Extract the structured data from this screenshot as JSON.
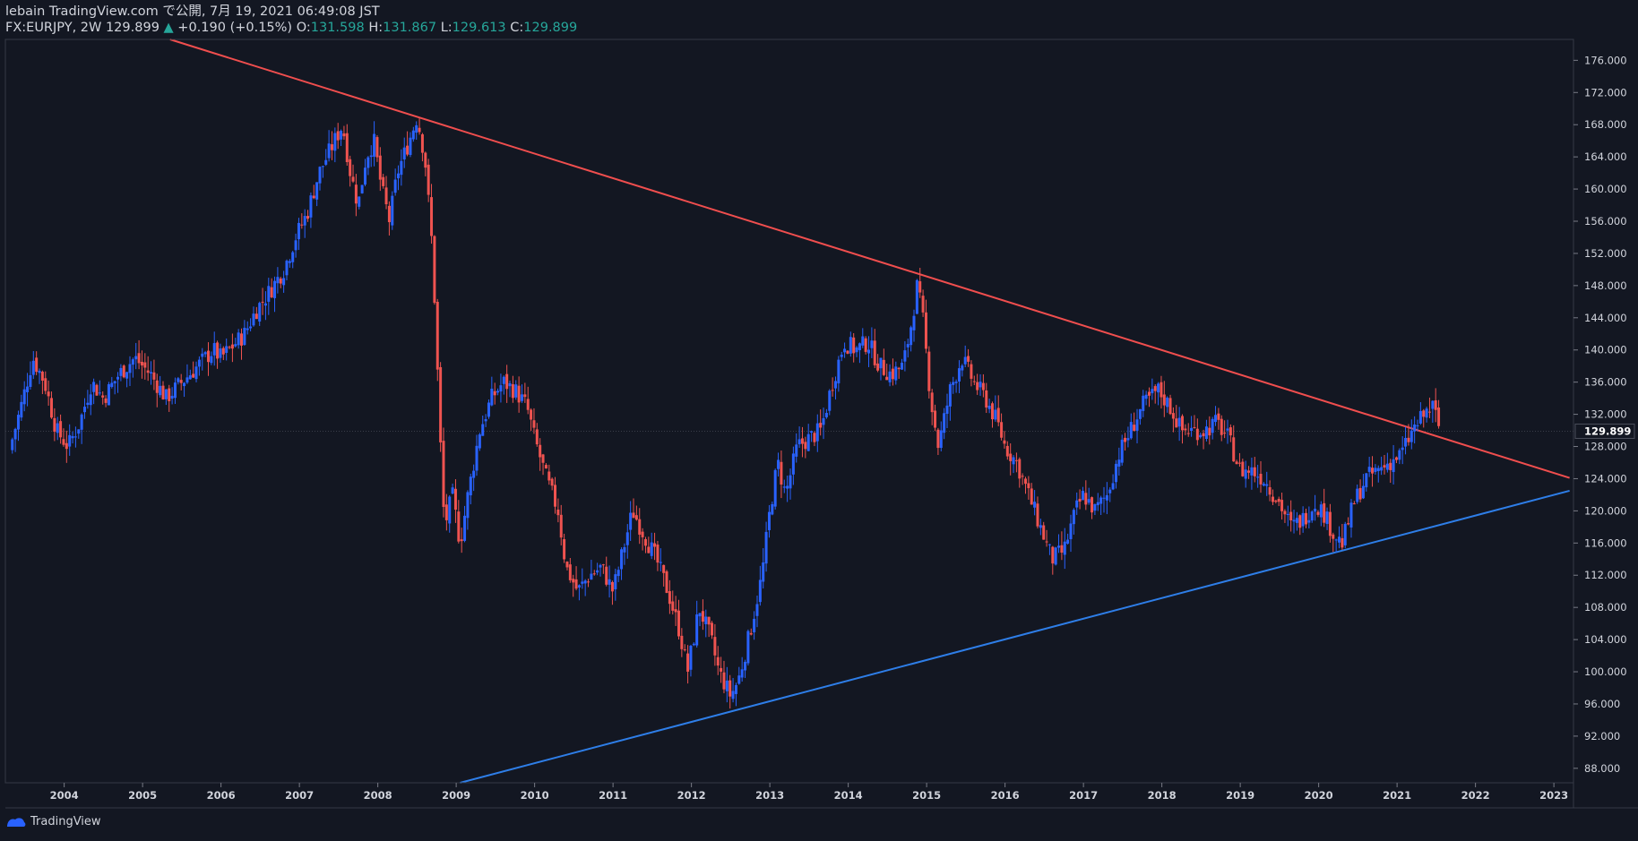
{
  "header": {
    "published_line": "lebain TradingView.com で公開, 7月 19, 2021 06:49:08 JST",
    "symbol_interval_close": "FX:EURJPY, 2W 129.899",
    "change_arrow": "▲",
    "change": "+0.190 (+0.15%)",
    "open_label": "O:",
    "open": "131.598",
    "high_label": "H:",
    "high": "131.867",
    "low_label": "L:",
    "low": "129.613",
    "close_label": "C:",
    "close": "129.899"
  },
  "footer": {
    "brand": "TradingView",
    "logo_icon": "tradingview-logo-icon"
  },
  "colors": {
    "background": "#131722",
    "up": "#2962ff",
    "down": "#ef5350",
    "resistance": "#f04e4e",
    "support": "#2e7ee8",
    "grid": "#2a2e39",
    "text": "#d1d4dc"
  },
  "chart_data": {
    "type": "candlestick",
    "title": "FX:EURJPY, 2W",
    "x_ticks": [
      "2004",
      "2005",
      "2006",
      "2007",
      "2008",
      "2009",
      "2010",
      "2011",
      "2012",
      "2013",
      "2014",
      "2015",
      "2016",
      "2017",
      "2018",
      "2019",
      "2020",
      "2021",
      "2022",
      "2023"
    ],
    "y_ticks": [
      88,
      92,
      96,
      100,
      104,
      108,
      112,
      116,
      120,
      124,
      128,
      132,
      136,
      140,
      144,
      148,
      152,
      156,
      160,
      164,
      168,
      172,
      176
    ],
    "ylim": [
      86.2,
      178.6
    ],
    "xlim": [
      2003.25,
      2023.25
    ],
    "last_price": "129.899",
    "close_path": [
      [
        2003.3,
        127.5
      ],
      [
        2003.45,
        133
      ],
      [
        2003.6,
        139
      ],
      [
        2003.75,
        136
      ],
      [
        2003.9,
        130
      ],
      [
        2004.05,
        128
      ],
      [
        2004.2,
        131
      ],
      [
        2004.35,
        136
      ],
      [
        2004.5,
        134
      ],
      [
        2004.7,
        137
      ],
      [
        2004.9,
        139
      ],
      [
        2005.1,
        137
      ],
      [
        2005.3,
        134
      ],
      [
        2005.5,
        136
      ],
      [
        2005.7,
        138
      ],
      [
        2005.9,
        140
      ],
      [
        2006.0,
        139
      ],
      [
        2006.15,
        140.5
      ],
      [
        2006.3,
        142
      ],
      [
        2006.45,
        145
      ],
      [
        2006.6,
        147
      ],
      [
        2006.8,
        150
      ],
      [
        2006.95,
        154
      ],
      [
        2007.1,
        157
      ],
      [
        2007.25,
        162
      ],
      [
        2007.4,
        165
      ],
      [
        2007.55,
        168
      ],
      [
        2007.65,
        162
      ],
      [
        2007.75,
        158
      ],
      [
        2007.85,
        164
      ],
      [
        2007.95,
        166
      ],
      [
        2008.05,
        160
      ],
      [
        2008.15,
        156
      ],
      [
        2008.25,
        162
      ],
      [
        2008.4,
        166
      ],
      [
        2008.5,
        169
      ],
      [
        2008.6,
        164
      ],
      [
        2008.7,
        152
      ],
      [
        2008.75,
        140
      ],
      [
        2008.8,
        128
      ],
      [
        2008.85,
        118
      ],
      [
        2008.95,
        122
      ],
      [
        2009.05,
        116
      ],
      [
        2009.15,
        122
      ],
      [
        2009.3,
        130
      ],
      [
        2009.45,
        134
      ],
      [
        2009.6,
        136
      ],
      [
        2009.75,
        135
      ],
      [
        2009.9,
        133
      ],
      [
        2010.0,
        129
      ],
      [
        2010.15,
        124
      ],
      [
        2010.3,
        120
      ],
      [
        2010.4,
        113
      ],
      [
        2010.55,
        110
      ],
      [
        2010.7,
        112
      ],
      [
        2010.85,
        113
      ],
      [
        2011.0,
        110
      ],
      [
        2011.1,
        114
      ],
      [
        2011.25,
        120
      ],
      [
        2011.4,
        117
      ],
      [
        2011.55,
        114
      ],
      [
        2011.7,
        110
      ],
      [
        2011.85,
        105
      ],
      [
        2011.95,
        100
      ],
      [
        2012.1,
        108
      ],
      [
        2012.25,
        104
      ],
      [
        2012.35,
        100
      ],
      [
        2012.5,
        97
      ],
      [
        2012.6,
        99
      ],
      [
        2012.75,
        105
      ],
      [
        2012.9,
        112
      ],
      [
        2013.0,
        120
      ],
      [
        2013.1,
        126
      ],
      [
        2013.2,
        122
      ],
      [
        2013.35,
        128
      ],
      [
        2013.5,
        129
      ],
      [
        2013.65,
        130
      ],
      [
        2013.8,
        136
      ],
      [
        2013.95,
        141
      ],
      [
        2014.1,
        140
      ],
      [
        2014.25,
        141
      ],
      [
        2014.4,
        138
      ],
      [
        2014.55,
        137
      ],
      [
        2014.7,
        138
      ],
      [
        2014.8,
        143
      ],
      [
        2014.88,
        148
      ],
      [
        2014.95,
        144
      ],
      [
        2015.05,
        134
      ],
      [
        2015.15,
        128
      ],
      [
        2015.3,
        135
      ],
      [
        2015.45,
        139
      ],
      [
        2015.6,
        136
      ],
      [
        2015.75,
        134
      ],
      [
        2015.9,
        131
      ],
      [
        2016.0,
        128
      ],
      [
        2016.15,
        126
      ],
      [
        2016.3,
        122
      ],
      [
        2016.45,
        118
      ],
      [
        2016.6,
        114
      ],
      [
        2016.75,
        115
      ],
      [
        2016.9,
        120
      ],
      [
        2017.0,
        122
      ],
      [
        2017.15,
        120
      ],
      [
        2017.3,
        122
      ],
      [
        2017.45,
        127
      ],
      [
        2017.6,
        130
      ],
      [
        2017.75,
        133
      ],
      [
        2017.95,
        135
      ],
      [
        2018.1,
        133
      ],
      [
        2018.25,
        130
      ],
      [
        2018.4,
        130
      ],
      [
        2018.55,
        130
      ],
      [
        2018.7,
        131
      ],
      [
        2018.85,
        129
      ],
      [
        2019.0,
        125
      ],
      [
        2019.15,
        125
      ],
      [
        2019.3,
        124
      ],
      [
        2019.5,
        121
      ],
      [
        2019.65,
        118
      ],
      [
        2019.8,
        119
      ],
      [
        2019.95,
        121
      ],
      [
        2020.05,
        120
      ],
      [
        2020.2,
        117
      ],
      [
        2020.3,
        116
      ],
      [
        2020.45,
        121
      ],
      [
        2020.6,
        124
      ],
      [
        2020.75,
        125
      ],
      [
        2020.9,
        126
      ],
      [
        2021.05,
        127
      ],
      [
        2021.2,
        130
      ],
      [
        2021.35,
        132
      ],
      [
        2021.45,
        133
      ],
      [
        2021.5,
        131.6
      ],
      [
        2021.55,
        129.9
      ]
    ],
    "trendlines": [
      {
        "name": "resistance",
        "from": [
          2005.35,
          178.6
        ],
        "to": [
          2023.2,
          124.1
        ]
      },
      {
        "name": "support",
        "from": [
          2009.05,
          86.2
        ],
        "to": [
          2023.2,
          122.5
        ]
      }
    ]
  }
}
